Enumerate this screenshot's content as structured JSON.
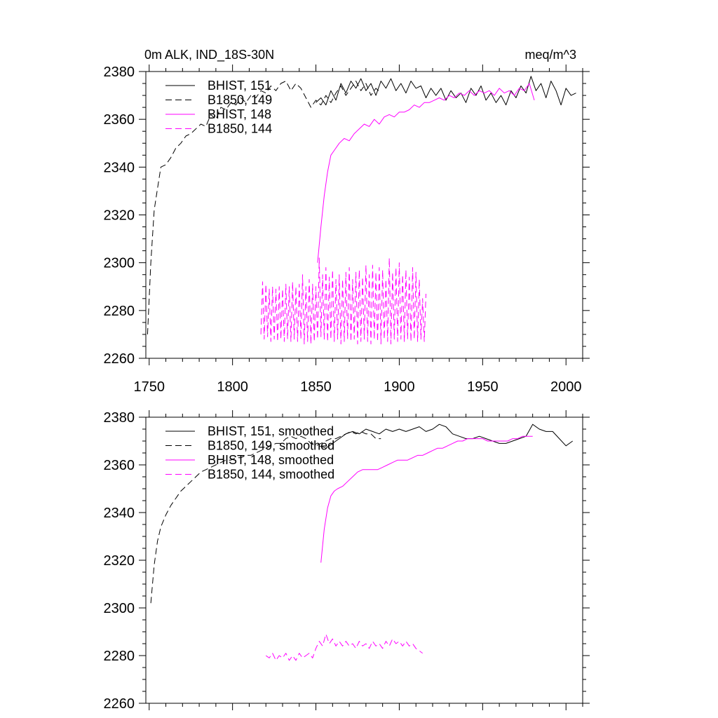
{
  "chart_data": [
    {
      "type": "line",
      "title_left": "0m ALK, IND_18S-30N",
      "title_right": "meq/m^3",
      "xlim": [
        1748,
        2010
      ],
      "ylim": [
        2260,
        2380
      ],
      "x_ticks": [
        1750,
        1800,
        1850,
        1900,
        1950,
        2000
      ],
      "x_tick_labels": [
        "1750",
        "1800",
        "1850",
        "1900",
        "1950",
        "2000"
      ],
      "y_ticks": [
        2260,
        2280,
        2300,
        2320,
        2340,
        2360,
        2380
      ],
      "y_tick_labels": [
        "2260",
        "2280",
        "2300",
        "2320",
        "2340",
        "2360",
        "2380"
      ],
      "legend_position": "top-left",
      "series": [
        {
          "name": "BHIST, 151",
          "color": "#000000",
          "dash": "solid",
          "x": [
            1850,
            1853,
            1856,
            1859,
            1862,
            1865,
            1868,
            1871,
            1874,
            1877,
            1880,
            1883,
            1886,
            1889,
            1892,
            1895,
            1898,
            1901,
            1904,
            1907,
            1910,
            1913,
            1916,
            1919,
            1922,
            1925,
            1928,
            1931,
            1934,
            1937,
            1940,
            1943,
            1946,
            1949,
            1952,
            1955,
            1958,
            1961,
            1964,
            1967,
            1970,
            1973,
            1976,
            1979,
            1982,
            1985,
            1988,
            1991,
            1994,
            1997,
            2000,
            2003,
            2006
          ],
          "y": [
            2367,
            2369,
            2366,
            2372,
            2368,
            2375,
            2371,
            2376,
            2373,
            2377,
            2372,
            2375,
            2370,
            2376,
            2373,
            2377,
            2372,
            2375,
            2371,
            2376,
            2373,
            2374,
            2369,
            2373,
            2370,
            2373,
            2368,
            2372,
            2369,
            2371,
            2367,
            2373,
            2370,
            2374,
            2368,
            2371,
            2367,
            2370,
            2366,
            2372,
            2369,
            2374,
            2371,
            2378,
            2372,
            2375,
            2369,
            2376,
            2372,
            2366,
            2373,
            2370,
            2371
          ]
        },
        {
          "name": "B1850, 149",
          "color": "#000000",
          "dash": "dashed",
          "x": [
            1749,
            1751,
            1753,
            1755,
            1757,
            1760,
            1763,
            1766,
            1769,
            1772,
            1775,
            1778,
            1781,
            1784,
            1787,
            1790,
            1793,
            1796,
            1799,
            1802,
            1805,
            1808,
            1811,
            1814,
            1817,
            1820,
            1823,
            1826,
            1829,
            1832,
            1835,
            1838,
            1841,
            1844,
            1847,
            1850,
            1853,
            1856,
            1859,
            1862,
            1865,
            1868,
            1871,
            1874,
            1877,
            1880,
            1883,
            1886,
            1889
          ],
          "y": [
            2270,
            2300,
            2322,
            2331,
            2340,
            2341,
            2344,
            2348,
            2350,
            2353,
            2354,
            2356,
            2358,
            2357,
            2362,
            2360,
            2365,
            2364,
            2367,
            2366,
            2369,
            2367,
            2370,
            2369,
            2372,
            2371,
            2374,
            2372,
            2375,
            2376,
            2372,
            2375,
            2373,
            2369,
            2365,
            2368,
            2366,
            2370,
            2367,
            2371,
            2374,
            2370,
            2373,
            2376,
            2372,
            2375,
            2370,
            2373,
            2371
          ]
        },
        {
          "name": "BHIST, 148",
          "color": "#ff00ff",
          "dash": "solid",
          "x": [
            1851,
            1853,
            1855,
            1857,
            1859,
            1861,
            1864,
            1867,
            1870,
            1873,
            1876,
            1879,
            1882,
            1885,
            1888,
            1891,
            1894,
            1897,
            1900,
            1903,
            1906,
            1909,
            1912,
            1915,
            1918,
            1921,
            1924,
            1927,
            1930,
            1933,
            1936,
            1939,
            1942,
            1945,
            1948,
            1951,
            1954,
            1957,
            1960,
            1963,
            1966,
            1969,
            1972,
            1975,
            1978,
            1981
          ],
          "y": [
            2300,
            2315,
            2328,
            2338,
            2345,
            2347,
            2350,
            2352,
            2351,
            2354,
            2356,
            2358,
            2357,
            2360,
            2358,
            2361,
            2362,
            2361,
            2363,
            2363,
            2364,
            2366,
            2365,
            2367,
            2367,
            2368,
            2369,
            2368,
            2370,
            2369,
            2371,
            2370,
            2372,
            2370,
            2372,
            2371,
            2372,
            2370,
            2373,
            2371,
            2372,
            2370,
            2373,
            2372,
            2375,
            2368
          ]
        },
        {
          "name": "B1850, 144",
          "color": "#ff00ff",
          "dash": "dashed",
          "x": [
            1817,
            1818,
            1819,
            1820,
            1821,
            1822,
            1823,
            1824,
            1825,
            1826,
            1827,
            1828,
            1829,
            1830,
            1831,
            1832,
            1833,
            1834,
            1835,
            1836,
            1837,
            1838,
            1839,
            1840,
            1841,
            1842,
            1843,
            1844,
            1845,
            1846,
            1847,
            1848,
            1849,
            1850,
            1851,
            1852,
            1853,
            1854,
            1855,
            1856,
            1857,
            1858,
            1859,
            1860,
            1861,
            1862,
            1863,
            1864,
            1865,
            1866,
            1867,
            1868,
            1869,
            1870,
            1871,
            1872,
            1873,
            1874,
            1875,
            1876,
            1877,
            1878,
            1879,
            1880,
            1881,
            1882,
            1883,
            1884,
            1885,
            1886,
            1887,
            1888,
            1889,
            1890,
            1891,
            1892,
            1893,
            1894,
            1895,
            1896,
            1897,
            1898,
            1899,
            1900,
            1901,
            1902,
            1903,
            1904,
            1905,
            1906,
            1907,
            1908,
            1909,
            1910,
            1911,
            1912,
            1913,
            1914,
            1915,
            1916
          ],
          "y": [
            2270,
            2292,
            2268,
            2291,
            2269,
            2289,
            2267,
            2290,
            2268,
            2289,
            2267,
            2290,
            2268,
            2289,
            2267,
            2291,
            2268,
            2290,
            2267,
            2292,
            2268,
            2290,
            2267,
            2291,
            2268,
            2295,
            2266,
            2290,
            2267,
            2293,
            2266,
            2291,
            2267,
            2290,
            2268,
            2302,
            2269,
            2295,
            2268,
            2298,
            2267,
            2294,
            2268,
            2297,
            2267,
            2293,
            2268,
            2295,
            2266,
            2293,
            2267,
            2296,
            2268,
            2298,
            2267,
            2293,
            2268,
            2296,
            2266,
            2297,
            2267,
            2294,
            2268,
            2299,
            2267,
            2295,
            2266,
            2299,
            2268,
            2296,
            2267,
            2298,
            2266,
            2297,
            2268,
            2293,
            2267,
            2302,
            2266,
            2296,
            2268,
            2298,
            2267,
            2300,
            2268,
            2295,
            2267,
            2297,
            2268,
            2294,
            2267,
            2298,
            2268,
            2296,
            2267,
            2293,
            2268,
            2285,
            2267,
            2287
          ]
        }
      ]
    },
    {
      "type": "line",
      "xlim": [
        1748,
        2010
      ],
      "ylim": [
        2260,
        2380
      ],
      "x_ticks": [
        1750,
        1800,
        1850,
        1900,
        1950,
        2000
      ],
      "y_ticks": [
        2260,
        2280,
        2300,
        2320,
        2340,
        2360,
        2380
      ],
      "y_tick_labels": [
        "2260",
        "2280",
        "2300",
        "2320",
        "2340",
        "2360",
        "2380"
      ],
      "legend_position": "top-left",
      "series": [
        {
          "name": "BHIST, 151, smoothed",
          "color": "#000000",
          "dash": "solid",
          "x": [
            1852,
            1856,
            1860,
            1864,
            1868,
            1872,
            1876,
            1880,
            1884,
            1888,
            1892,
            1896,
            1900,
            1904,
            1908,
            1912,
            1916,
            1920,
            1924,
            1928,
            1932,
            1936,
            1940,
            1944,
            1948,
            1952,
            1956,
            1960,
            1964,
            1968,
            1972,
            1976,
            1980,
            1984,
            1988,
            1992,
            1996,
            2000,
            2004
          ],
          "y": [
            2368,
            2367,
            2369,
            2371,
            2373,
            2374,
            2373,
            2375,
            2374,
            2373,
            2375,
            2374,
            2375,
            2374,
            2375,
            2376,
            2374,
            2375,
            2377,
            2376,
            2373,
            2372,
            2371,
            2371,
            2372,
            2371,
            2370,
            2369,
            2369,
            2370,
            2371,
            2372,
            2377,
            2375,
            2374,
            2374,
            2371,
            2368,
            2370
          ]
        },
        {
          "name": "B1850, 149, smoothed",
          "color": "#000000",
          "dash": "dashed",
          "x": [
            1751,
            1753,
            1755,
            1757,
            1760,
            1763,
            1766,
            1769,
            1772,
            1775,
            1778,
            1781,
            1784,
            1787,
            1790,
            1793,
            1796,
            1799,
            1802,
            1805,
            1808,
            1811,
            1814,
            1817,
            1820,
            1823,
            1826,
            1829,
            1832,
            1835,
            1838,
            1841,
            1844,
            1847,
            1850,
            1853,
            1856,
            1859,
            1862,
            1865,
            1868,
            1871,
            1874,
            1877,
            1880,
            1883,
            1886,
            1889
          ],
          "y": [
            2302,
            2318,
            2328,
            2334,
            2339,
            2343,
            2346,
            2349,
            2351,
            2353,
            2355,
            2357,
            2358,
            2359,
            2360,
            2361,
            2362,
            2362,
            2363,
            2363,
            2364,
            2364,
            2365,
            2366,
            2367,
            2368,
            2369,
            2369,
            2371,
            2372,
            2371,
            2372,
            2371,
            2369,
            2368,
            2369,
            2370,
            2371,
            2371,
            2372,
            2373,
            2374,
            2373,
            2374,
            2373,
            2373,
            2371,
            2371
          ]
        },
        {
          "name": "BHIST, 148, smoothed",
          "color": "#ff00ff",
          "dash": "solid",
          "x": [
            1853,
            1855,
            1857,
            1859,
            1861,
            1863,
            1866,
            1869,
            1872,
            1875,
            1878,
            1881,
            1884,
            1887,
            1890,
            1893,
            1896,
            1899,
            1902,
            1905,
            1908,
            1911,
            1914,
            1917,
            1920,
            1923,
            1926,
            1929,
            1932,
            1935,
            1938,
            1941,
            1944,
            1947,
            1950,
            1953,
            1956,
            1959,
            1962,
            1965,
            1968,
            1971,
            1974,
            1977,
            1980
          ],
          "y": [
            2319,
            2333,
            2342,
            2347,
            2349,
            2350,
            2351,
            2353,
            2355,
            2357,
            2358,
            2358,
            2358,
            2358,
            2359,
            2360,
            2361,
            2362,
            2362,
            2362,
            2363,
            2364,
            2364,
            2365,
            2366,
            2367,
            2367,
            2368,
            2369,
            2370,
            2370,
            2371,
            2371,
            2371,
            2371,
            2370,
            2370,
            2370,
            2370,
            2370,
            2371,
            2371,
            2372,
            2372,
            2372
          ]
        },
        {
          "name": "B1850, 144, smoothed",
          "color": "#ff00ff",
          "dash": "dashed",
          "x": [
            1820,
            1822,
            1824,
            1826,
            1828,
            1830,
            1832,
            1834,
            1836,
            1838,
            1840,
            1842,
            1844,
            1846,
            1848,
            1850,
            1852,
            1854,
            1856,
            1858,
            1860,
            1862,
            1864,
            1866,
            1868,
            1870,
            1872,
            1874,
            1876,
            1878,
            1880,
            1882,
            1884,
            1886,
            1888,
            1890,
            1892,
            1894,
            1896,
            1898,
            1900,
            1902,
            1904,
            1906,
            1908,
            1910,
            1912,
            1914
          ],
          "y": [
            2280,
            2279,
            2281,
            2278,
            2280,
            2279,
            2281,
            2278,
            2280,
            2278,
            2281,
            2279,
            2280,
            2281,
            2279,
            2283,
            2286,
            2284,
            2289,
            2285,
            2287,
            2284,
            2286,
            2284,
            2286,
            2284,
            2285,
            2283,
            2286,
            2284,
            2285,
            2283,
            2286,
            2284,
            2285,
            2283,
            2286,
            2284,
            2287,
            2285,
            2286,
            2284,
            2286,
            2284,
            2285,
            2283,
            2282,
            2281
          ]
        }
      ]
    }
  ]
}
